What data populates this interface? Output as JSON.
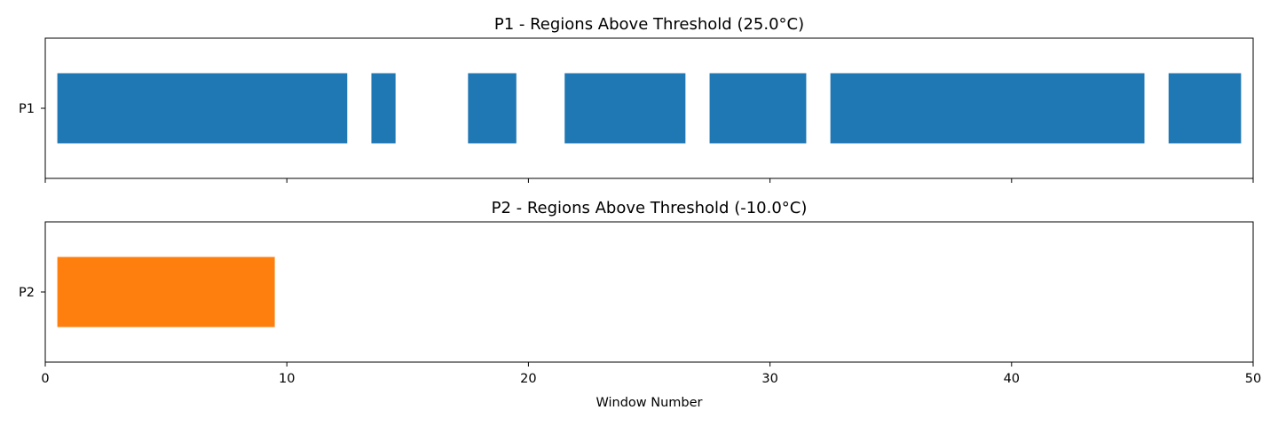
{
  "chart_data": [
    {
      "type": "bar",
      "orientation": "horizontal-ranges",
      "title": "P1 - Regions Above Threshold (25.0°C)",
      "category": "P1",
      "color": "#1f77b4",
      "xlim": [
        0,
        50
      ],
      "xticks": [
        0,
        10,
        20,
        30,
        40,
        50
      ],
      "show_xtick_labels": false,
      "xlabel": "",
      "ranges": [
        {
          "start": 0.5,
          "end": 12.5
        },
        {
          "start": 13.5,
          "end": 14.5
        },
        {
          "start": 17.5,
          "end": 19.5
        },
        {
          "start": 21.5,
          "end": 26.5
        },
        {
          "start": 27.5,
          "end": 31.5
        },
        {
          "start": 32.5,
          "end": 45.5
        },
        {
          "start": 46.5,
          "end": 49.5
        }
      ]
    },
    {
      "type": "bar",
      "orientation": "horizontal-ranges",
      "title": "P2 - Regions Above Threshold (-10.0°C)",
      "category": "P2",
      "color": "#ff7f0e",
      "xlim": [
        0,
        50
      ],
      "xticks": [
        0,
        10,
        20,
        30,
        40,
        50
      ],
      "show_xtick_labels": true,
      "xlabel": "Window Number",
      "ranges": [
        {
          "start": 0.5,
          "end": 9.5
        }
      ]
    }
  ]
}
